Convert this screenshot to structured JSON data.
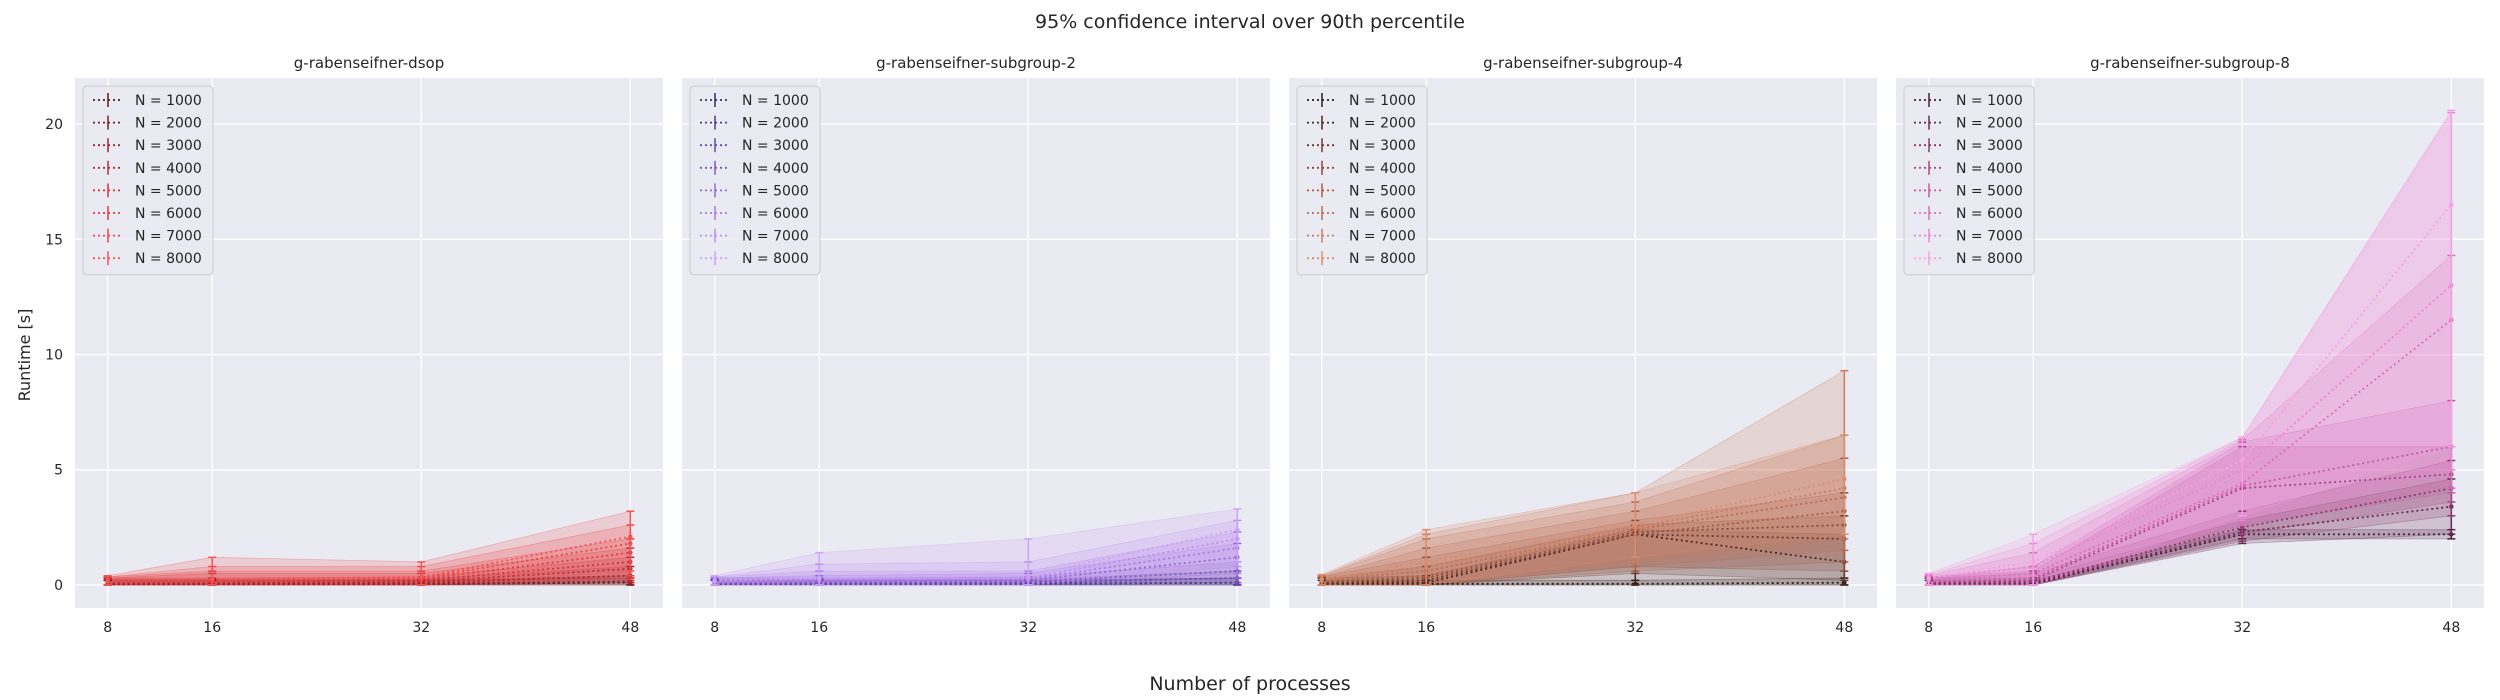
{
  "figure": {
    "suptitle": "95% confidence interval over 90th percentile",
    "xlabel": "Number of processes",
    "ylabel": "Runtime [s]"
  },
  "chart_data": [
    {
      "type": "line",
      "title": "g-rabenseifner-dsop",
      "x": [
        8,
        16,
        32,
        48
      ],
      "xticks": [
        8,
        16,
        32,
        48
      ],
      "ylim": [
        -1,
        22
      ],
      "yticks": [
        0,
        5,
        10,
        15,
        20
      ],
      "grid": true,
      "legend": "top-left",
      "colors": [
        "#5a1a1a",
        "#7a1f24",
        "#9c2530",
        "#b82b34",
        "#d23238",
        "#e33a3c",
        "#ee4646",
        "#f25555"
      ],
      "series": [
        {
          "name": "N = 1000",
          "values": [
            0.05,
            0.05,
            0.05,
            0.1
          ],
          "lower": [
            0.0,
            0.0,
            0.0,
            0.0
          ],
          "upper": [
            0.2,
            0.2,
            0.2,
            0.3
          ]
        },
        {
          "name": "N = 2000",
          "values": [
            0.05,
            0.05,
            0.05,
            0.15
          ],
          "lower": [
            0.0,
            0.0,
            0.0,
            0.0
          ],
          "upper": [
            0.2,
            0.2,
            0.2,
            0.4
          ]
        },
        {
          "name": "N = 3000",
          "values": [
            0.1,
            0.1,
            0.1,
            0.4
          ],
          "lower": [
            0.0,
            0.0,
            0.0,
            0.1
          ],
          "upper": [
            0.25,
            0.25,
            0.25,
            0.8
          ]
        },
        {
          "name": "N = 4000",
          "values": [
            0.1,
            0.1,
            0.15,
            0.7
          ],
          "lower": [
            0.0,
            0.0,
            0.0,
            0.1
          ],
          "upper": [
            0.3,
            0.3,
            0.35,
            1.2
          ]
        },
        {
          "name": "N = 5000",
          "values": [
            0.1,
            0.15,
            0.2,
            1.0
          ],
          "lower": [
            0.0,
            0.0,
            0.0,
            0.2
          ],
          "upper": [
            0.3,
            0.5,
            0.5,
            1.6
          ]
        },
        {
          "name": "N = 6000",
          "values": [
            0.15,
            0.15,
            0.25,
            1.4
          ],
          "lower": [
            0.0,
            0.0,
            0.0,
            0.3
          ],
          "upper": [
            0.35,
            0.6,
            0.6,
            2.0
          ]
        },
        {
          "name": "N = 7000",
          "values": [
            0.15,
            0.2,
            0.3,
            1.8
          ],
          "lower": [
            0.0,
            0.0,
            0.0,
            0.4
          ],
          "upper": [
            0.35,
            0.8,
            0.8,
            2.6
          ]
        },
        {
          "name": "N = 8000",
          "values": [
            0.2,
            0.25,
            0.35,
            2.1
          ],
          "lower": [
            0.0,
            0.0,
            0.0,
            0.6
          ],
          "upper": [
            0.4,
            1.2,
            1.0,
            3.2
          ]
        }
      ]
    },
    {
      "type": "line",
      "title": "g-rabenseifner-subgroup-2",
      "x": [
        8,
        16,
        32,
        48
      ],
      "xticks": [
        8,
        16,
        32,
        48
      ],
      "ylim": [
        -1,
        22
      ],
      "yticks": [
        0,
        5,
        10,
        15,
        20
      ],
      "grid": true,
      "legend": "top-left",
      "colors": [
        "#3a2a6a",
        "#52388a",
        "#6a47a8",
        "#8057c2",
        "#9468d6",
        "#a87ae6",
        "#bc8df2",
        "#cda2f8"
      ],
      "series": [
        {
          "name": "N = 1000",
          "values": [
            0.05,
            0.05,
            0.05,
            0.1
          ],
          "lower": [
            0.0,
            0.0,
            0.0,
            0.0
          ],
          "upper": [
            0.2,
            0.2,
            0.2,
            0.3
          ]
        },
        {
          "name": "N = 2000",
          "values": [
            0.05,
            0.05,
            0.05,
            0.1
          ],
          "lower": [
            0.0,
            0.0,
            0.0,
            0.0
          ],
          "upper": [
            0.2,
            0.2,
            0.2,
            0.3
          ]
        },
        {
          "name": "N = 3000",
          "values": [
            0.1,
            0.1,
            0.1,
            0.3
          ],
          "lower": [
            0.0,
            0.0,
            0.0,
            0.0
          ],
          "upper": [
            0.25,
            0.25,
            0.25,
            0.6
          ]
        },
        {
          "name": "N = 4000",
          "values": [
            0.1,
            0.1,
            0.15,
            0.6
          ],
          "lower": [
            0.0,
            0.0,
            0.0,
            0.1
          ],
          "upper": [
            0.3,
            0.3,
            0.35,
            1.0
          ]
        },
        {
          "name": "N = 5000",
          "values": [
            0.1,
            0.15,
            0.2,
            1.2
          ],
          "lower": [
            0.0,
            0.0,
            0.0,
            0.3
          ],
          "upper": [
            0.3,
            0.4,
            0.5,
            1.8
          ]
        },
        {
          "name": "N = 6000",
          "values": [
            0.15,
            0.2,
            0.25,
            1.6
          ],
          "lower": [
            0.0,
            0.0,
            0.0,
            0.5
          ],
          "upper": [
            0.35,
            0.6,
            0.6,
            2.3
          ]
        },
        {
          "name": "N = 7000",
          "values": [
            0.15,
            0.25,
            0.3,
            2.0
          ],
          "lower": [
            0.0,
            0.0,
            0.0,
            0.8
          ],
          "upper": [
            0.35,
            0.9,
            1.0,
            2.8
          ]
        },
        {
          "name": "N = 8000",
          "values": [
            0.2,
            0.3,
            0.4,
            2.4
          ],
          "lower": [
            0.0,
            0.0,
            0.0,
            1.0
          ],
          "upper": [
            0.4,
            1.4,
            2.0,
            3.3
          ]
        }
      ]
    },
    {
      "type": "line",
      "title": "g-rabenseifner-subgroup-4",
      "x": [
        8,
        16,
        32,
        48
      ],
      "xticks": [
        8,
        16,
        32,
        48
      ],
      "ylim": [
        -1,
        22
      ],
      "yticks": [
        0,
        5,
        10,
        15,
        20
      ],
      "grid": true,
      "legend": "top-left",
      "colors": [
        "#2a1a14",
        "#4a2820",
        "#6a3a2c",
        "#8a4a38",
        "#a85c44",
        "#bc6c50",
        "#cc7c5e",
        "#da8e70"
      ],
      "series": [
        {
          "name": "N = 1000",
          "values": [
            0.05,
            0.05,
            0.05,
            0.1
          ],
          "lower": [
            0.0,
            0.0,
            0.0,
            0.0
          ],
          "upper": [
            0.2,
            0.2,
            0.2,
            0.3
          ]
        },
        {
          "name": "N = 2000",
          "values": [
            0.1,
            0.1,
            2.2,
            1.0
          ],
          "lower": [
            0.0,
            0.0,
            0.0,
            0.0
          ],
          "upper": [
            0.3,
            0.4,
            2.4,
            2.2
          ]
        },
        {
          "name": "N = 3000",
          "values": [
            0.1,
            0.2,
            2.2,
            2.0
          ],
          "lower": [
            0.0,
            0.0,
            0.5,
            0.2
          ],
          "upper": [
            0.3,
            0.8,
            2.6,
            3.0
          ]
        },
        {
          "name": "N = 4000",
          "values": [
            0.15,
            0.3,
            2.3,
            2.6
          ],
          "lower": [
            0.0,
            0.0,
            0.8,
            0.6
          ],
          "upper": [
            0.35,
            1.2,
            2.8,
            4.0
          ]
        },
        {
          "name": "N = 5000",
          "values": [
            0.15,
            0.4,
            2.2,
            3.2
          ],
          "lower": [
            0.0,
            0.0,
            0.6,
            1.0
          ],
          "upper": [
            0.35,
            1.6,
            3.2,
            5.5
          ]
        },
        {
          "name": "N = 6000",
          "values": [
            0.2,
            0.6,
            2.4,
            3.8
          ],
          "lower": [
            0.0,
            0.0,
            0.8,
            1.5
          ],
          "upper": [
            0.4,
            2.0,
            3.6,
            6.5
          ]
        },
        {
          "name": "N = 7000",
          "values": [
            0.2,
            0.8,
            2.5,
            4.2
          ],
          "lower": [
            0.0,
            0.0,
            1.0,
            2.0
          ],
          "upper": [
            0.4,
            2.2,
            4.0,
            9.3
          ]
        },
        {
          "name": "N = 8000",
          "values": [
            0.25,
            1.0,
            2.6,
            4.6
          ],
          "lower": [
            0.0,
            0.0,
            1.2,
            2.2
          ],
          "upper": [
            0.45,
            2.4,
            4.0,
            6.5
          ]
        }
      ]
    },
    {
      "type": "line",
      "title": "g-rabenseifner-subgroup-8",
      "x": [
        8,
        16,
        32,
        48
      ],
      "xticks": [
        8,
        16,
        32,
        48
      ],
      "ylim": [
        -1,
        22
      ],
      "yticks": [
        0,
        5,
        10,
        15,
        20
      ],
      "grid": true,
      "legend": "top-left",
      "colors": [
        "#4a1f3a",
        "#6a2a52",
        "#8a386c",
        "#a84886",
        "#c45aa2",
        "#dc6ebc",
        "#ee84d4",
        "#f7a0e6"
      ],
      "series": [
        {
          "name": "N = 1000",
          "values": [
            0.05,
            0.05,
            2.2,
            2.2
          ],
          "lower": [
            0.0,
            0.0,
            2.0,
            2.0
          ],
          "upper": [
            0.2,
            0.2,
            2.4,
            2.4
          ]
        },
        {
          "name": "N = 2000",
          "values": [
            0.1,
            0.1,
            2.3,
            3.4
          ],
          "lower": [
            0.0,
            0.0,
            1.8,
            2.2
          ],
          "upper": [
            0.3,
            0.3,
            2.8,
            4.6
          ]
        },
        {
          "name": "N = 3000",
          "values": [
            0.1,
            0.15,
            2.5,
            4.2
          ],
          "lower": [
            0.0,
            0.0,
            1.9,
            3.0
          ],
          "upper": [
            0.3,
            0.5,
            3.2,
            5.4
          ]
        },
        {
          "name": "N = 4000",
          "values": [
            0.15,
            0.2,
            4.2,
            4.8
          ],
          "lower": [
            0.0,
            0.0,
            2.2,
            3.6
          ],
          "upper": [
            0.35,
            0.6,
            6.0,
            6.0
          ]
        },
        {
          "name": "N = 5000",
          "values": [
            0.15,
            0.3,
            4.3,
            6.0
          ],
          "lower": [
            0.0,
            0.0,
            2.6,
            4.0
          ],
          "upper": [
            0.35,
            0.8,
            6.2,
            8.0
          ]
        },
        {
          "name": "N = 6000",
          "values": [
            0.2,
            0.5,
            4.4,
            11.5
          ],
          "lower": [
            0.0,
            0.0,
            2.6,
            4.2
          ],
          "upper": [
            0.4,
            1.4,
            6.3,
            14.3
          ]
        },
        {
          "name": "N = 7000",
          "values": [
            0.25,
            0.8,
            5.0,
            13.0
          ],
          "lower": [
            0.0,
            0.0,
            2.8,
            5.0
          ],
          "upper": [
            0.45,
            1.8,
            6.4,
            20.5
          ]
        },
        {
          "name": "N = 8000",
          "values": [
            0.3,
            1.0,
            5.4,
            16.5
          ],
          "lower": [
            0.0,
            0.0,
            3.0,
            6.0
          ],
          "upper": [
            0.5,
            2.2,
            6.4,
            20.6
          ]
        }
      ]
    }
  ]
}
